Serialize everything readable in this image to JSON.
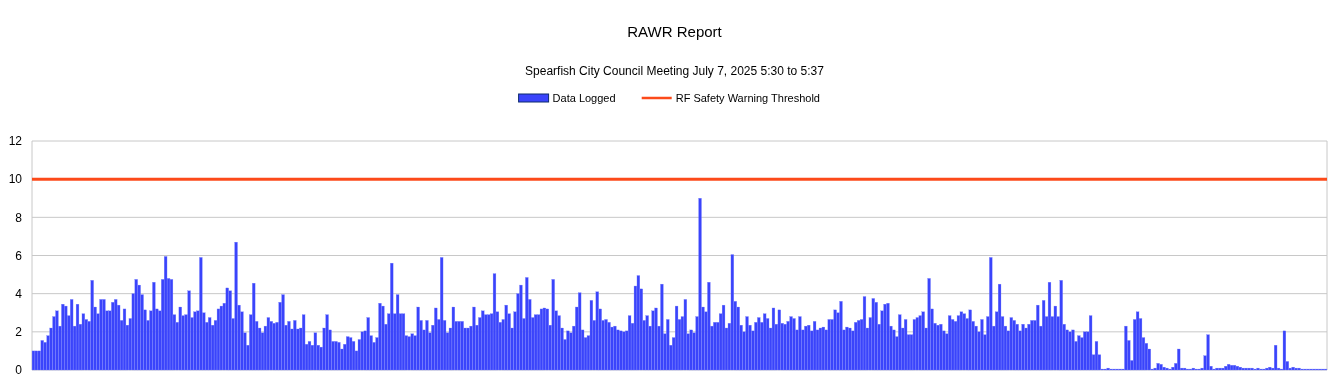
{
  "chart_data": {
    "type": "bar",
    "title": "RAWR Report",
    "subtitle": "Spearfish City Council Meeting July 7, 2025 5:30 to 5:37",
    "categories": [
      null,
      null,
      null,
      null,
      null,
      null,
      null,
      null,
      null,
      null,
      null,
      null,
      null,
      null,
      null,
      null,
      null,
      null,
      null,
      null,
      null,
      null,
      null,
      null,
      null,
      null,
      null,
      null,
      null,
      null,
      null,
      null,
      null,
      null,
      null,
      null,
      null,
      null,
      null,
      null,
      null,
      null,
      null,
      null,
      null,
      null,
      null,
      null,
      null,
      null,
      null,
      null,
      null,
      null,
      null,
      null,
      null,
      null,
      null,
      null,
      null,
      null,
      null,
      null,
      null,
      null,
      null,
      null,
      null,
      null,
      null,
      null,
      null,
      null,
      null,
      null,
      null,
      null,
      null,
      null,
      null,
      null,
      null,
      null,
      null,
      null,
      null,
      null,
      null,
      null,
      null,
      null,
      null,
      null,
      null,
      null,
      null,
      null,
      null,
      null,
      null,
      null,
      null,
      null,
      null,
      null,
      null,
      null,
      null,
      null,
      null,
      null,
      null,
      null,
      null,
      null,
      null,
      null,
      null,
      null,
      null,
      null,
      null,
      null,
      null,
      null,
      null,
      null,
      null,
      null,
      null,
      null,
      null,
      null,
      null,
      null,
      null,
      null,
      null,
      null,
      null,
      null,
      null,
      null,
      null,
      null,
      null,
      null,
      null,
      null,
      null,
      null,
      null,
      null,
      null,
      null,
      null,
      null,
      null,
      null,
      null,
      null,
      null,
      null,
      null,
      null,
      null,
      null,
      null,
      null,
      null,
      null,
      null,
      null,
      null,
      null,
      null,
      null,
      null,
      null,
      null,
      null,
      null,
      null,
      null,
      null,
      null,
      null,
      null,
      null,
      null,
      null,
      null,
      null,
      null,
      null,
      null,
      null,
      null,
      null,
      null,
      null,
      null,
      null,
      null,
      null,
      null,
      null,
      null,
      null,
      null,
      null,
      null,
      null,
      null,
      null,
      null,
      null,
      null,
      null,
      null,
      null,
      null,
      null,
      null,
      null,
      null,
      null,
      null,
      null,
      null,
      null,
      null,
      null,
      null,
      null,
      null,
      null,
      null,
      null,
      null,
      null,
      null,
      null,
      null,
      null,
      null,
      null,
      null,
      null,
      null,
      null,
      null,
      null,
      null,
      null,
      null,
      null,
      null,
      null,
      null,
      null,
      null,
      null,
      null,
      null,
      null,
      null,
      null,
      null,
      null,
      null,
      null,
      null,
      null,
      null,
      null,
      null,
      null,
      null,
      null,
      null,
      null,
      null,
      null,
      null,
      null,
      null,
      null,
      null,
      null,
      null,
      null,
      null,
      null,
      null,
      null,
      null,
      null,
      null,
      null,
      null,
      null,
      null,
      null,
      null,
      null,
      null,
      null,
      null,
      null,
      null,
      null,
      null,
      null,
      null,
      null,
      null,
      null,
      null,
      null,
      null,
      null,
      null,
      null,
      null,
      null,
      null,
      null,
      null,
      null,
      null,
      null,
      null,
      null,
      null,
      null,
      null,
      null,
      null,
      null,
      null,
      null,
      null,
      null,
      null,
      null,
      null,
      null,
      null,
      null,
      null,
      null,
      null,
      null,
      null,
      null,
      null,
      null,
      null,
      null,
      null,
      null,
      null,
      null,
      null,
      null,
      null,
      null,
      null,
      null,
      null,
      null,
      null,
      null,
      null,
      null,
      null,
      null,
      null,
      null,
      null,
      null,
      null,
      null,
      null,
      null,
      null,
      null,
      null,
      null,
      null,
      null,
      null,
      null,
      null,
      null,
      null,
      null,
      null,
      null,
      null,
      null,
      null,
      null,
      null,
      null,
      null,
      null,
      null,
      null,
      null,
      null,
      null,
      null,
      null,
      null,
      null,
      null,
      null,
      null,
      null,
      null,
      null,
      null,
      null,
      null,
      null,
      null,
      null,
      null,
      null,
      null,
      null,
      null,
      null,
      null,
      null,
      null,
      null,
      null
    ],
    "series": [
      {
        "name": "Data Logged",
        "color": "#3a44fb",
        "values": [
          1.0,
          1.0,
          1.0,
          1.55,
          1.45,
          1.8,
          2.2,
          2.8,
          3.1,
          2.3,
          3.45,
          3.35,
          2.85,
          3.7,
          2.3,
          3.45,
          2.4,
          2.95,
          2.65,
          2.55,
          4.7,
          3.3,
          2.95,
          3.7,
          3.7,
          3.1,
          3.1,
          3.55,
          3.7,
          3.4,
          2.6,
          3.2,
          2.35,
          2.7,
          4.0,
          4.75,
          4.45,
          3.95,
          3.15,
          2.6,
          3.1,
          4.6,
          3.2,
          3.1,
          4.75,
          5.95,
          4.8,
          4.75,
          2.9,
          2.5,
          3.3,
          2.85,
          2.9,
          4.15,
          2.75,
          3.05,
          3.1,
          5.9,
          3.0,
          2.5,
          2.75,
          2.35,
          2.6,
          3.2,
          3.35,
          3.5,
          4.3,
          4.15,
          2.7,
          6.7,
          3.4,
          3.05,
          1.95,
          1.3,
          2.9,
          4.55,
          2.55,
          2.2,
          1.95,
          2.3,
          2.75,
          2.55,
          2.45,
          2.5,
          3.55,
          3.95,
          2.35,
          2.55,
          2.15,
          2.6,
          2.15,
          2.2,
          2.9,
          1.35,
          1.5,
          1.3,
          1.95,
          1.3,
          1.2,
          2.2,
          2.9,
          2.1,
          1.5,
          1.5,
          1.45,
          1.1,
          1.35,
          1.75,
          1.7,
          1.5,
          1.0,
          1.6,
          2.0,
          2.05,
          2.75,
          1.8,
          1.45,
          1.7,
          3.5,
          3.35,
          2.4,
          2.95,
          5.6,
          2.95,
          3.95,
          2.95,
          2.95,
          1.8,
          1.75,
          1.9,
          1.8,
          3.3,
          2.6,
          2.1,
          2.6,
          1.95,
          2.35,
          3.25,
          2.65,
          5.9,
          2.6,
          1.95,
          2.2,
          3.3,
          2.55,
          2.55,
          2.55,
          2.2,
          2.2,
          2.3,
          3.3,
          2.35,
          2.75,
          3.1,
          2.9,
          2.9,
          2.95,
          5.05,
          3.05,
          2.5,
          2.65,
          3.4,
          2.95,
          2.2,
          3.05,
          4.0,
          4.45,
          2.7,
          4.85,
          3.7,
          2.75,
          2.9,
          2.9,
          3.2,
          3.25,
          3.2,
          2.35,
          4.75,
          3.1,
          2.85,
          2.2,
          1.6,
          2.05,
          1.95,
          2.3,
          3.3,
          4.05,
          2.1,
          1.7,
          1.8,
          3.65,
          2.6,
          4.1,
          3.2,
          2.6,
          2.65,
          2.5,
          2.25,
          2.3,
          2.1,
          2.05,
          2.0,
          2.05,
          2.85,
          2.45,
          4.4,
          4.95,
          4.25,
          2.6,
          2.85,
          2.3,
          3.1,
          3.25,
          2.3,
          4.5,
          1.9,
          2.65,
          1.3,
          1.7,
          3.35,
          2.65,
          2.8,
          3.7,
          1.9,
          2.1,
          1.95,
          2.8,
          9.0,
          3.3,
          3.05,
          4.6,
          2.3,
          2.5,
          2.5,
          2.95,
          3.4,
          2.2,
          2.45,
          6.05,
          3.6,
          3.3,
          2.35,
          2.0,
          2.8,
          2.35,
          2.05,
          2.5,
          2.75,
          2.5,
          2.95,
          2.7,
          2.2,
          3.25,
          2.4,
          3.15,
          2.45,
          2.4,
          2.55,
          2.8,
          2.7,
          2.1,
          2.8,
          2.1,
          2.3,
          2.35,
          2.05,
          2.55,
          2.1,
          2.2,
          2.25,
          2.1,
          2.65,
          2.65,
          3.15,
          3.0,
          3.6,
          2.1,
          2.25,
          2.2,
          2.05,
          2.5,
          2.6,
          2.65,
          3.85,
          2.2,
          2.75,
          3.75,
          3.55,
          2.4,
          3.1,
          3.45,
          3.5,
          2.3,
          2.1,
          1.75,
          2.9,
          2.2,
          2.65,
          1.85,
          1.85,
          2.65,
          2.75,
          2.85,
          3.05,
          2.2,
          4.8,
          3.2,
          2.45,
          2.35,
          2.4,
          2.05,
          1.9,
          2.85,
          2.65,
          2.55,
          2.85,
          3.05,
          2.95,
          2.7,
          3.15,
          2.55,
          2.3,
          2.0,
          2.65,
          1.85,
          2.8,
          5.9,
          2.3,
          3.05,
          4.5,
          2.8,
          2.3,
          2.05,
          2.75,
          2.6,
          2.4,
          2.05,
          2.4,
          2.2,
          2.4,
          2.6,
          2.6,
          3.4,
          2.3,
          3.65,
          2.8,
          4.6,
          2.8,
          3.35,
          2.8,
          4.7,
          2.4,
          2.1,
          2.0,
          2.1,
          1.5,
          1.8,
          1.7,
          2.0,
          2.0,
          2.85,
          0.8,
          1.5,
          0.8,
          0.05,
          0.05,
          0.1,
          0.05,
          0.05,
          0.05,
          0.05,
          0.05,
          2.3,
          1.55,
          0.5,
          2.65,
          3.05,
          2.7,
          1.7,
          1.4,
          1.1,
          0.05,
          0.1,
          0.35,
          0.3,
          0.15,
          0.1,
          0.05,
          0.15,
          0.35,
          1.1,
          0.1,
          0.1,
          0.05,
          0.05,
          0.1,
          0.05,
          0.05,
          0.1,
          0.75,
          1.85,
          0.2,
          0.05,
          0.1,
          0.1,
          0.1,
          0.2,
          0.3,
          0.25,
          0.25,
          0.2,
          0.15,
          0.1,
          0.1,
          0.1,
          0.1,
          0.05,
          0.1,
          0.05,
          0.05,
          0.1,
          0.15,
          0.1,
          1.3,
          0.1,
          0.05,
          2.05,
          0.45,
          0.1,
          0.15,
          0.1,
          0.1,
          0.05,
          0.05,
          0.05,
          0.05,
          0.05,
          0.05,
          0.05,
          0.05,
          0.05
        ]
      }
    ],
    "ref_lines": [
      {
        "axis": "y",
        "value": 10,
        "label": "RF Safety Warning Threshold",
        "color": "#fc4a1a"
      }
    ],
    "ylim": [
      0,
      12
    ],
    "yticks": [
      0,
      2,
      4,
      6,
      8,
      10,
      12
    ],
    "grid": "y",
    "legend": "top"
  }
}
